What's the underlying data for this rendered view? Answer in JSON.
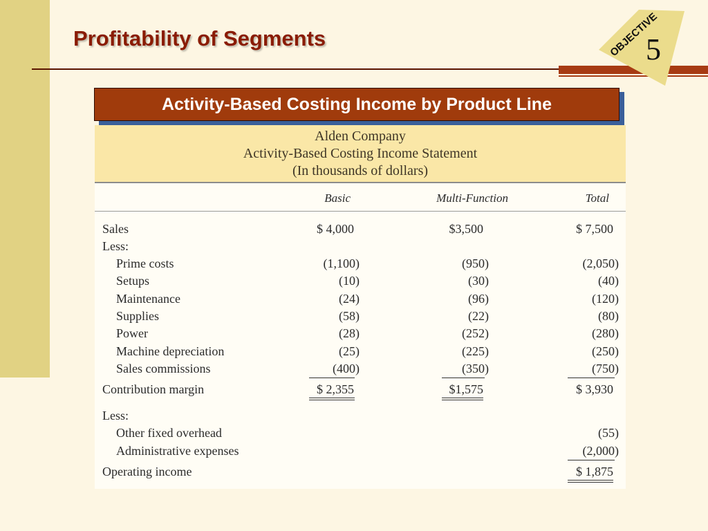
{
  "slide": {
    "title": "Profitability of Segments",
    "objective_label": "OBJECTIVE",
    "objective_number": "5",
    "banner": "Activity-Based Costing Income by Product Line"
  },
  "statement": {
    "company": "Alden Company",
    "title": "Activity-Based Costing Income Statement",
    "units": "(In thousands of dollars)",
    "columns": [
      "Basic",
      "Multi-Function",
      "Total"
    ],
    "rows": {
      "sales": {
        "label": "Sales",
        "basic": "$ 4,000",
        "multi": "$3,500",
        "total": "$ 7,500"
      },
      "less1": {
        "label": "Less:"
      },
      "prime": {
        "label": "Prime costs",
        "basic": "(1,100)",
        "multi": "(950)",
        "total": "(2,050)"
      },
      "setups": {
        "label": "Setups",
        "basic": "(10)",
        "multi": "(30)",
        "total": "(40)"
      },
      "maint": {
        "label": "Maintenance",
        "basic": "(24)",
        "multi": "(96)",
        "total": "(120)"
      },
      "supplies": {
        "label": "Supplies",
        "basic": "(58)",
        "multi": "(22)",
        "total": "(80)"
      },
      "power": {
        "label": "Power",
        "basic": "(28)",
        "multi": "(252)",
        "total": "(280)"
      },
      "machine": {
        "label": "Machine depreciation",
        "basic": "(25)",
        "multi": "(225)",
        "total": "(250)"
      },
      "commissions": {
        "label": "Sales commissions",
        "basic": "(400)",
        "multi": "(350)",
        "total": "(750)"
      },
      "cm": {
        "label": "Contribution margin",
        "basic": "$ 2,355",
        "multi": "$1,575",
        "total": "$ 3,930"
      },
      "less2": {
        "label": "Less:"
      },
      "other": {
        "label": "Other fixed overhead",
        "total": "(55)"
      },
      "admin": {
        "label": "Administrative expenses",
        "total": "(2,000)"
      },
      "opinc": {
        "label": "Operating income",
        "total": "$ 1,875"
      }
    }
  },
  "colors": {
    "title": "#8a1c04",
    "banner": "#a03b0c",
    "header_fill": "#fae7a7",
    "left_bar": "#e1d283"
  }
}
